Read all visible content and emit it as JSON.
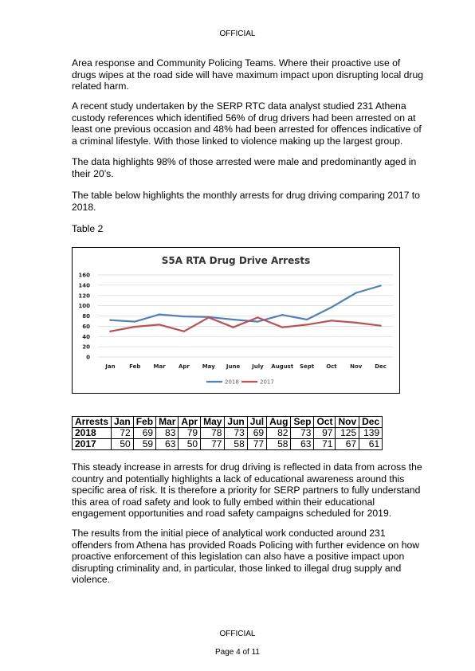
{
  "header": {
    "marking": "OFFICIAL"
  },
  "body": {
    "p1": "Area response and Community Policing Teams. Where their proactive use of drugs wipes at the road side will have maximum impact upon disrupting local drug related harm.",
    "p2": "A recent study undertaken by the SERP RTC data analyst studied 231 Athena custody references which identified 56% of drug drivers had been arrested on at least one previous occasion and 48% had been arrested for offences indicative of a criminal lifestyle. With those linked to violence making up the largest group.",
    "p3": "The data highlights 98% of those arrested were male and predominantly aged in their 20’s.",
    "p4": "The table below highlights the monthly arrests for drug driving comparing 2017 to 2018.",
    "table_caption": "Table 2",
    "p5": "This steady increase in arrests for drug driving is reflected in data from across the country and potentially highlights a lack of educational awareness around this specific area of risk. It is therefore a priority for SERP partners to fully understand this area of road safety and look to fully embed within their educational engagement opportunities and road safety campaigns scheduled for 2019.",
    "p6": "The results from the initial piece of analytical work conducted around 231 offenders from Athena has provided Roads Policing with further evidence on how proactive enforcement of this legislation can also have a positive impact upon disrupting criminality and, in particular, those linked to illegal drug supply and violence."
  },
  "chart_data": {
    "type": "line",
    "title": "S5A RTA Drug Drive Arrests",
    "categories": [
      "Jan",
      "Feb",
      "Mar",
      "Apr",
      "May",
      "June",
      "July",
      "August",
      "Sept",
      "Oct",
      "Nov",
      "Dec"
    ],
    "series": [
      {
        "name": "2018",
        "color": "#4f81bd",
        "values": [
          72,
          69,
          83,
          79,
          78,
          73,
          69,
          82,
          73,
          97,
          125,
          139
        ]
      },
      {
        "name": "2017",
        "color": "#c0504d",
        "values": [
          50,
          59,
          63,
          50,
          77,
          58,
          77,
          58,
          63,
          71,
          67,
          61
        ]
      }
    ],
    "ylim": [
      0,
      160
    ],
    "yticks": [
      0,
      20,
      40,
      60,
      80,
      100,
      120,
      140,
      160
    ],
    "grid": true,
    "legend_position": "bottom"
  },
  "table": {
    "headers": [
      "Arrests",
      "Jan",
      "Feb",
      "Mar",
      "Apr",
      "May",
      "Jun",
      "Jul",
      "Aug",
      "Sep",
      "Oct",
      "Nov",
      "Dec"
    ],
    "rows": [
      [
        "2018",
        "72",
        "69",
        "83",
        "79",
        "78",
        "73",
        "69",
        "82",
        "73",
        "97",
        "125",
        "139"
      ],
      [
        "2017",
        "50",
        "59",
        "63",
        "50",
        "77",
        "58",
        "77",
        "58",
        "63",
        "71",
        "67",
        "61"
      ]
    ]
  },
  "footer": {
    "marking": "OFFICIAL",
    "page": "Page 4 of 11"
  }
}
